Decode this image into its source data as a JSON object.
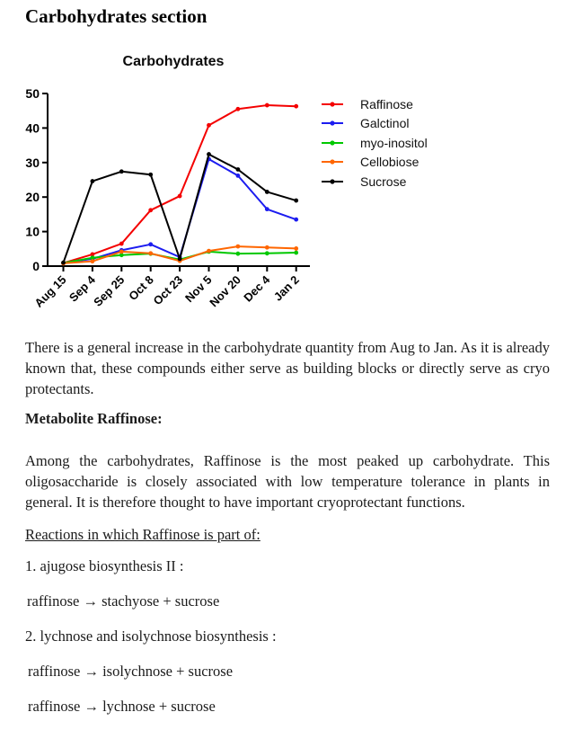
{
  "doc": {
    "title": "Carbohydrates section"
  },
  "chart_data": {
    "type": "line",
    "title": "Carbohydrates",
    "categories": [
      "Aug 15",
      "Sep 4",
      "Sep 25",
      "Oct 8",
      "Oct 23",
      "Nov 5",
      "Nov 20",
      "Dec 4",
      "Jan 2"
    ],
    "series": [
      {
        "name": "Raffinose",
        "color": "#f40000",
        "values": [
          0.9,
          3.4,
          6.5,
          16.2,
          20.3,
          40.8,
          45.5,
          46.6,
          46.3
        ]
      },
      {
        "name": "Galctinol",
        "color": "#1c1cf0",
        "values": [
          0.9,
          2.1,
          4.6,
          6.3,
          2.6,
          31.0,
          26.2,
          16.5,
          13.5
        ]
      },
      {
        "name": "myo-inositol",
        "color": "#00c800",
        "values": [
          0.9,
          2.4,
          3.2,
          3.6,
          1.9,
          4.2,
          3.6,
          3.7,
          3.9
        ]
      },
      {
        "name": "Cellobiose",
        "color": "#ff6600",
        "values": [
          0.8,
          1.4,
          4.2,
          3.7,
          1.5,
          4.4,
          5.7,
          5.4,
          5.1
        ]
      },
      {
        "name": "Sucrose",
        "color": "#000000",
        "values": [
          1.0,
          24.6,
          27.4,
          26.5,
          2.1,
          32.4,
          28.0,
          21.5,
          19.0
        ]
      }
    ],
    "xlabel": "",
    "ylabel": "",
    "ylim": [
      0,
      50
    ],
    "yticks": [
      0,
      10,
      20,
      30,
      40,
      50
    ],
    "grid": false,
    "legend_position": "right"
  },
  "body": {
    "paragraph1": "There is a general increase in the carbohydrate quantity from Aug to Jan. As it is already known that, these compounds either serve as building blocks or directly serve as cryo protectants.",
    "metabolite_heading": "Metabolite Raffinose:",
    "paragraph2": "Among the carbohydrates, Raffinose is the most peaked up carbohydrate. This oligosaccharide is closely associated with low temperature tolerance in plants in general. It is therefore thought to have important cryoprotectant functions.",
    "reactions_heading": "Reactions in which Raffinose is part of:",
    "reaction_lines": [
      "1. ajugose biosynthesis II :",
      "raffinose → stachyose + sucrose",
      "2. lychnose and isolychnose biosynthesis :",
      "raffinose → isolychnose + sucrose",
      "raffinose → lychnose + sucrose"
    ]
  }
}
